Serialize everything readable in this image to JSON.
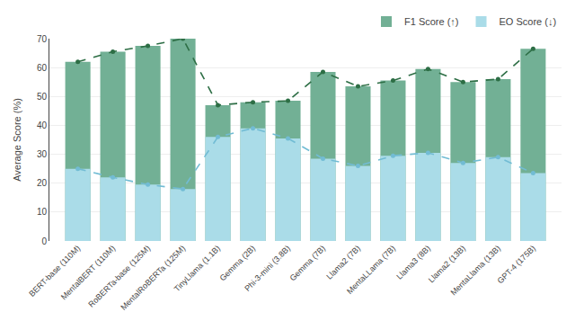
{
  "chart_data": {
    "type": "bar",
    "categories": [
      "BERT-base (110M)",
      "MentalBERT (110M)",
      "RoBERTa-base (125M)",
      "MentalRoBERTa (125M)",
      "TinyLlama (1.1B)",
      "Gemma (2B)",
      "Phi-3-mini (3.8B)",
      "Gemma (7B)",
      "Llama2 (7B)",
      "MentaLLama (7B)",
      "Llama3 (8B)",
      "Llama2 (13B)",
      "MentaLlama (13B)",
      "GPT-4 (175B)"
    ],
    "series": [
      {
        "name": "F1 Score (↑)",
        "type": "bar",
        "color": "#72b095",
        "values": [
          62,
          65.5,
          67.5,
          70,
          47,
          48,
          48.5,
          58.5,
          53.5,
          55.5,
          59.5,
          55,
          56,
          66.5
        ]
      },
      {
        "name": "EO Score (↓)",
        "type": "bar",
        "color": "#aadce8",
        "values": [
          25,
          22,
          19.5,
          18,
          36,
          39,
          35.5,
          28.5,
          26,
          29.5,
          30.5,
          27,
          29,
          23.5
        ]
      },
      {
        "type": "line",
        "color": "#2d6e45",
        "line_style": "dashed",
        "marker": "circle",
        "values": [
          62,
          65.5,
          67.5,
          70,
          47,
          48,
          48.5,
          58.5,
          53.5,
          55.5,
          59.5,
          55,
          56,
          66.5
        ]
      },
      {
        "type": "line",
        "color": "#72bcd4",
        "line_style": "dashed",
        "marker": "circle",
        "values": [
          25,
          22,
          19.5,
          18,
          36,
          39,
          35.5,
          28.5,
          26,
          29.5,
          30.5,
          27,
          29,
          23.5
        ]
      }
    ],
    "y_label": "Average Score (%)",
    "ylim": [
      0,
      70
    ],
    "yticks": [
      0,
      10,
      20,
      30,
      40,
      50,
      60,
      70
    ],
    "grid": true,
    "legend": "upper right"
  }
}
